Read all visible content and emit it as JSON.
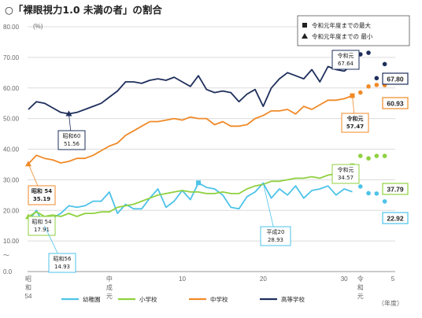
{
  "page": {
    "title": "○「裸眼視力1.0 未満の者」の割合"
  },
  "chart_data": {
    "type": "line",
    "y_unit": "(%)",
    "ylim": [
      0,
      80
    ],
    "y_ticks": [
      "0.0",
      "10.00",
      "20.00",
      "30.00",
      "40.00",
      "50.00",
      "60.00",
      "70.00",
      "80.00"
    ],
    "x_ticks": [
      {
        "label": "昭\n和\n54",
        "x": 1979
      },
      {
        "label": "中\n成\n元",
        "x": 1989
      },
      {
        "label": "10",
        "x": 1998
      },
      {
        "label": "20",
        "x": 2008
      },
      {
        "label": "30",
        "x": 2018
      },
      {
        "label": "令\n和\n元",
        "x": 2020
      },
      {
        "label": "5",
        "x": 2024
      }
    ],
    "x_unit": "（年度）",
    "x_start": 1979,
    "x_end": 2019,
    "series": [
      {
        "name": "幼稚園",
        "color": "#4dc3e8",
        "values": [
          16.5,
          20.0,
          14.93,
          17.5,
          19.0,
          21.5,
          21.0,
          21.5,
          23.0,
          23.0,
          26.0,
          19.0,
          22.0,
          20.5,
          20.5,
          24.0,
          27.0,
          21.0,
          23.0,
          26.5,
          23.5,
          29.0,
          27.5,
          27.0,
          25.0,
          21.0,
          20.5,
          24.5,
          26.0,
          28.93,
          24.0,
          27.0,
          25.0,
          28.0,
          24.0,
          26.5,
          27.0,
          28.0,
          25.0,
          27.0,
          26.06
        ]
      },
      {
        "name": "小学校",
        "color": "#8fd13f",
        "values": [
          17.91,
          19.5,
          18.0,
          18.5,
          18.0,
          19.0,
          18.0,
          19.0,
          19.0,
          19.5,
          19.5,
          21.0,
          21.5,
          22.0,
          23.0,
          24.0,
          25.0,
          25.5,
          26.0,
          26.5,
          26.0,
          26.0,
          25.5,
          25.5,
          26.0,
          25.5,
          25.5,
          27.0,
          28.0,
          28.5,
          29.5,
          29.5,
          30.0,
          30.5,
          30.5,
          31.0,
          30.5,
          31.5,
          32.0,
          33.5,
          34.57
        ]
      },
      {
        "name": "中学校",
        "color": "#f08a28",
        "values": [
          35.19,
          38.0,
          37.0,
          36.5,
          35.5,
          36.0,
          37.0,
          37.0,
          38.0,
          39.5,
          41.0,
          42.0,
          44.5,
          46.0,
          47.5,
          49.0,
          49.0,
          49.5,
          50.0,
          49.5,
          50.5,
          50.0,
          50.0,
          48.0,
          49.0,
          47.5,
          47.5,
          48.0,
          50.0,
          51.0,
          52.5,
          52.5,
          53.0,
          51.5,
          54.0,
          53.0,
          54.5,
          56.0,
          56.0,
          56.5,
          57.47
        ]
      },
      {
        "name": "高等学校",
        "color": "#1f2f5c",
        "values": [
          53.0,
          55.5,
          55.0,
          53.5,
          52.0,
          51.56,
          52.0,
          53.0,
          54.0,
          55.0,
          57.0,
          59.0,
          62.0,
          62.0,
          61.5,
          62.5,
          63.0,
          62.5,
          63.5,
          62.0,
          60.5,
          64.0,
          59.5,
          58.5,
          59.0,
          58.5,
          55.5,
          58.0,
          59.5,
          54.0,
          60.0,
          63.0,
          65.0,
          64.0,
          63.0,
          66.0,
          62.0,
          67.0,
          66.0,
          65.5,
          67.64
        ]
      }
    ],
    "forecast": [
      {
        "series": "幼稚園",
        "x": [
          2020,
          2021,
          2022,
          2023
        ],
        "values": [
          27.8,
          25.6,
          25.5,
          22.92
        ]
      },
      {
        "series": "小学校",
        "x": [
          2020,
          2021,
          2022,
          2023
        ],
        "values": [
          37.8,
          37.0,
          37.8,
          37.79
        ]
      },
      {
        "series": "中学校",
        "x": [
          2020,
          2021,
          2022,
          2023
        ],
        "values": [
          58.5,
          60.5,
          61.0,
          60.93
        ]
      },
      {
        "series": "高等学校",
        "x": [
          2020,
          2021,
          2022,
          2023
        ],
        "values": [
          71.0,
          71.5,
          63.2,
          67.8
        ]
      }
    ],
    "legend_box": [
      {
        "marker": "■",
        "label": "令和元年度までの最大"
      },
      {
        "marker": "▲",
        "label": "令和元年度までの 最小"
      }
    ],
    "annotations": [
      {
        "id": "s60",
        "lines": [
          "昭和60",
          "51.56"
        ]
      },
      {
        "id": "s54-jh",
        "lines": [
          "昭和 54",
          "35.19"
        ]
      },
      {
        "id": "s54-el",
        "lines": [
          "昭和 54",
          "17.91"
        ]
      },
      {
        "id": "s56",
        "lines": [
          "昭和56",
          "14.93"
        ]
      },
      {
        "id": "h20",
        "lines": [
          "平成20",
          "28.93"
        ]
      },
      {
        "id": "r1-hs",
        "lines": [
          "令和元",
          "67.64"
        ]
      },
      {
        "id": "r1-jh",
        "lines": [
          "令和元",
          "57.47"
        ]
      },
      {
        "id": "r1-el",
        "lines": [
          "令和元",
          "34.57"
        ]
      }
    ],
    "latest_values": [
      {
        "series": "高等学校",
        "value": "67.80"
      },
      {
        "series": "中学校",
        "value": "60.93"
      },
      {
        "series": "小学校",
        "value": "37.79"
      },
      {
        "series": "幼稚園",
        "value": "22.92"
      }
    ],
    "grid": true,
    "legend_position": "bottom"
  }
}
